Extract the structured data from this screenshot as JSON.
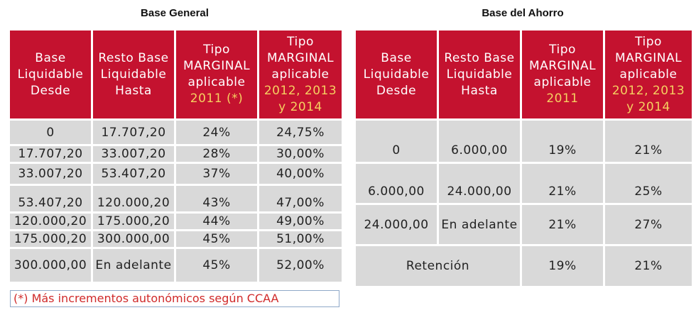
{
  "left": {
    "title": "Base General",
    "headers": [
      [
        "Base",
        "Liquidable",
        "Desde"
      ],
      [
        "Resto Base",
        "Liquidable",
        "Hasta"
      ],
      [
        "Tipo",
        "MARGINAL",
        "aplicable",
        "2011 (*)"
      ],
      [
        "Tipo",
        "MARGINAL",
        "aplicable",
        "2012, 2013",
        "y 2014"
      ]
    ],
    "rows": [
      [
        "0",
        "17.707,20",
        "24%",
        "24,75%"
      ],
      [
        "17.707,20",
        "33.007,20",
        "28%",
        "30,00%"
      ],
      [
        "33.007,20",
        "53.407,20",
        "37%",
        "40,00%"
      ],
      [
        "53.407,20",
        "120.000,20",
        "43%",
        "47,00%"
      ],
      [
        "120.000,20",
        "175.000,20",
        "44%",
        "49,00%"
      ],
      [
        "175.000,20",
        "300.000,00",
        "45%",
        "51,00%"
      ],
      [
        "300.000,00",
        "En adelante",
        "45%",
        "52,00%"
      ]
    ],
    "note": "(*) Más incrementos autonómicos según CCAA"
  },
  "right": {
    "title": "Base del Ahorro",
    "headers": [
      [
        "Base",
        "Liquidable",
        "Desde"
      ],
      [
        "Resto Base",
        "Liquidable",
        "Hasta"
      ],
      [
        "Tipo",
        "MARGINAL",
        "aplicable",
        "2011"
      ],
      [
        "Tipo",
        "MARGINAL",
        "aplicable",
        "2012, 2013",
        "y 2014"
      ]
    ],
    "rows": [
      [
        "0",
        "6.000,00",
        "19%",
        "21%"
      ],
      [
        "6.000,00",
        "24.000,00",
        "21%",
        "25%"
      ],
      [
        "24.000,00",
        "En adelante",
        "21%",
        "27%"
      ]
    ],
    "retention": {
      "label": "Retención",
      "v2011": "19%",
      "v2012": "21%"
    }
  }
}
